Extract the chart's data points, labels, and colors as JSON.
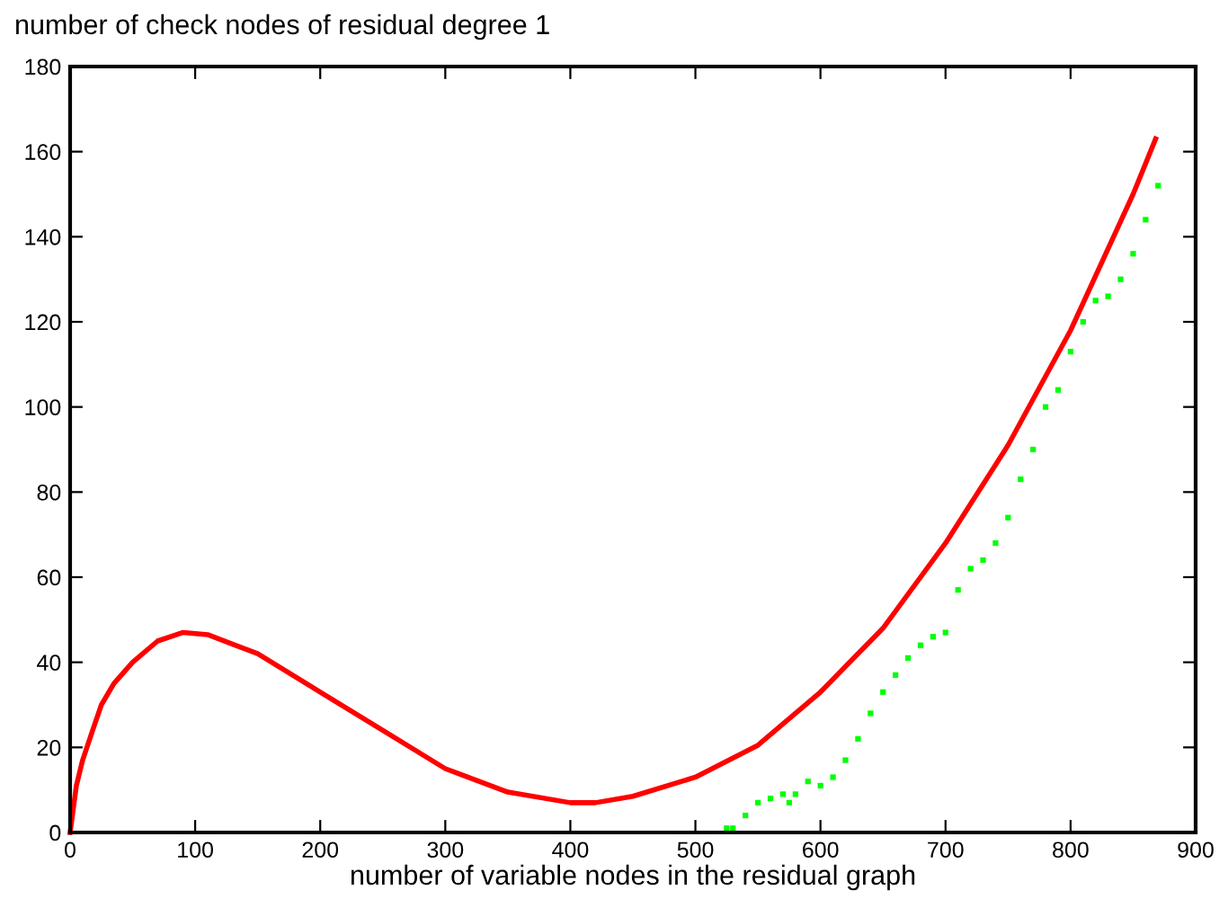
{
  "chart_data": {
    "type": "line",
    "title": "number of check nodes of residual degree 1",
    "xlabel": "number of variable nodes in the residual graph",
    "xlim": [
      0,
      900
    ],
    "ylim": [
      0,
      180
    ],
    "xticks": [
      0,
      100,
      200,
      300,
      400,
      500,
      600,
      700,
      800,
      900
    ],
    "yticks": [
      0,
      20,
      40,
      60,
      80,
      100,
      120,
      140,
      160,
      180
    ],
    "grid": false,
    "series": [
      {
        "color": "#ff0000",
        "line_style": "solid",
        "x": [
          0,
          5,
          10,
          18,
          25,
          35,
          50,
          70,
          90,
          110,
          150,
          200,
          250,
          300,
          350,
          400,
          420,
          450,
          500,
          550,
          600,
          650,
          700,
          750,
          800,
          850,
          868
        ],
        "values": [
          0,
          11,
          17,
          24,
          30,
          35,
          40,
          45,
          47,
          46.5,
          42,
          33,
          24,
          15,
          9.5,
          7,
          7,
          8.5,
          13,
          20.5,
          33,
          48,
          68,
          91,
          118,
          150,
          163
        ]
      },
      {
        "type": "scatter",
        "color": "#00ff00",
        "marker": "square",
        "x": [
          525,
          530,
          540,
          550,
          560,
          570,
          575,
          580,
          590,
          600,
          610,
          620,
          630,
          640,
          650,
          660,
          670,
          680,
          690,
          700,
          710,
          720,
          730,
          740,
          750,
          760,
          770,
          780,
          790,
          800,
          810,
          820,
          830,
          840,
          850,
          860,
          870
        ],
        "values": [
          1,
          1,
          4,
          7,
          8,
          9,
          7,
          9,
          12,
          11,
          13,
          17,
          22,
          28,
          33,
          37,
          41,
          44,
          46,
          47,
          57,
          62,
          64,
          68,
          74,
          83,
          90,
          100,
          104,
          113,
          120,
          125,
          126,
          130,
          136,
          144,
          152
        ]
      }
    ]
  }
}
